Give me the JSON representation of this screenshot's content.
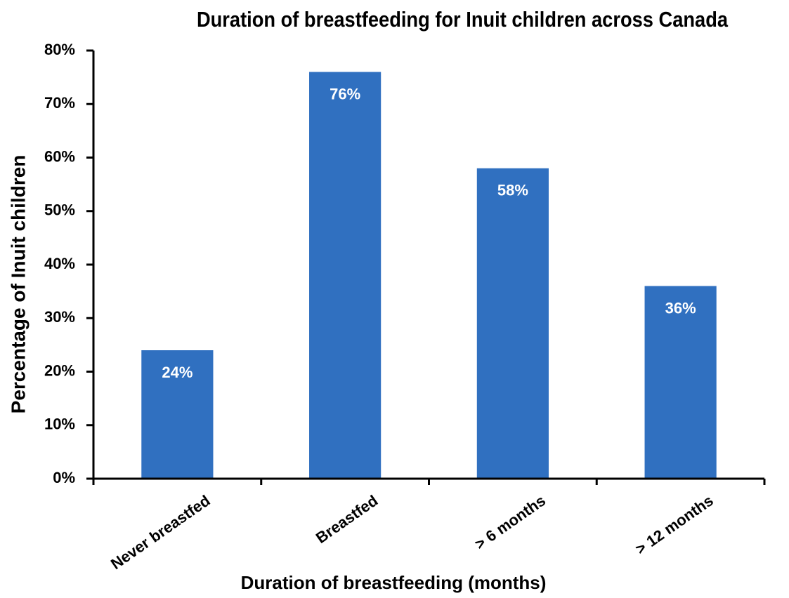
{
  "chart_data": {
    "type": "bar",
    "title": "Duration of breastfeeding for Inuit children across Canada",
    "x_label": "Duration of breastfeeding (months)",
    "y_label": "Percentage of Inuit children",
    "categories": [
      "Never breastfed",
      "Breastfed",
      "> 6 months",
      "> 12 months"
    ],
    "values": [
      24,
      76,
      58,
      36
    ],
    "value_labels": [
      "24%",
      "76%",
      "58%",
      "36%"
    ],
    "color": "#3070c0",
    "ylim": [
      0,
      80
    ],
    "yticks": [
      {
        "value": 0,
        "label": "0%"
      },
      {
        "value": 10,
        "label": "10%"
      },
      {
        "value": 20,
        "label": "20%"
      },
      {
        "value": 30,
        "label": "30%"
      },
      {
        "value": 40,
        "label": "40%"
      },
      {
        "value": 50,
        "label": "50%"
      },
      {
        "value": 60,
        "label": "60%"
      },
      {
        "value": 70,
        "label": "70%"
      },
      {
        "value": 80,
        "label": "80%"
      }
    ],
    "grid": false
  }
}
